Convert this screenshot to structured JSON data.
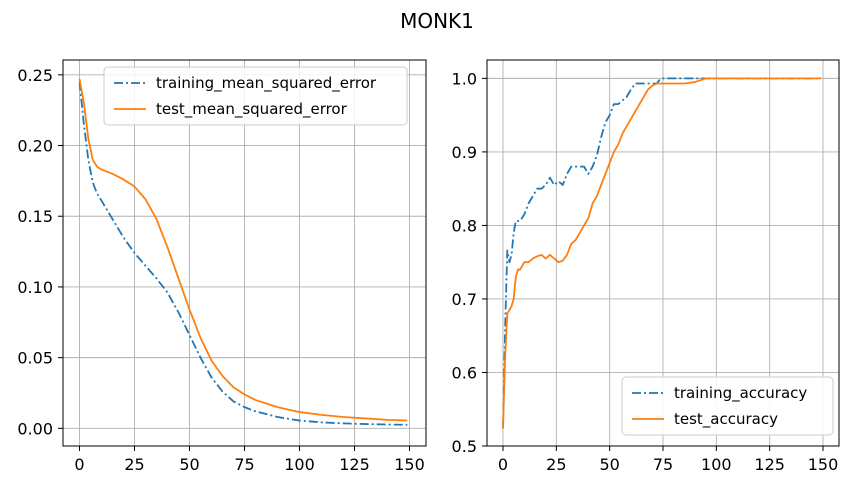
{
  "figure": {
    "title": "MONK1"
  },
  "colors": {
    "training": "#1f77b4",
    "test": "#ff7f0e",
    "grid": "#b0b0b0"
  },
  "chart_data": [
    {
      "type": "line",
      "title": "",
      "xlabel": "",
      "ylabel": "",
      "xlim": [
        -7.5,
        157.5
      ],
      "ylim": [
        -0.0125,
        0.2605
      ],
      "xticks": [
        0,
        25,
        50,
        75,
        100,
        125,
        150
      ],
      "xtick_labels": [
        "0",
        "25",
        "50",
        "75",
        "100",
        "125",
        "150"
      ],
      "yticks": [
        0.0,
        0.05,
        0.1,
        0.15,
        0.2,
        0.25
      ],
      "ytick_labels": [
        "0.00",
        "0.05",
        "0.10",
        "0.15",
        "0.20",
        "0.25"
      ],
      "grid": true,
      "legend_position": "upper right",
      "series": [
        {
          "name": "training_mean_squared_error",
          "style": "dashdot",
          "color": "#1f77b4",
          "x": [
            0,
            2,
            4,
            6,
            8,
            10,
            15,
            20,
            25,
            30,
            35,
            40,
            45,
            50,
            55,
            60,
            65,
            70,
            75,
            80,
            90,
            100,
            110,
            120,
            130,
            140,
            149
          ],
          "y": [
            0.245,
            0.215,
            0.19,
            0.174,
            0.166,
            0.161,
            0.148,
            0.135,
            0.124,
            0.115,
            0.106,
            0.096,
            0.082,
            0.066,
            0.05,
            0.036,
            0.026,
            0.019,
            0.015,
            0.012,
            0.008,
            0.0055,
            0.0042,
            0.0035,
            0.003,
            0.0027,
            0.0025
          ]
        },
        {
          "name": "test_mean_squared_error",
          "style": "solid",
          "color": "#ff7f0e",
          "x": [
            0,
            2,
            4,
            6,
            8,
            10,
            15,
            20,
            25,
            30,
            35,
            40,
            45,
            50,
            55,
            60,
            65,
            70,
            75,
            80,
            90,
            100,
            110,
            120,
            130,
            140,
            149
          ],
          "y": [
            0.247,
            0.23,
            0.205,
            0.19,
            0.185,
            0.183,
            0.18,
            0.176,
            0.171,
            0.162,
            0.148,
            0.128,
            0.106,
            0.084,
            0.064,
            0.048,
            0.037,
            0.029,
            0.024,
            0.02,
            0.015,
            0.0115,
            0.0095,
            0.008,
            0.007,
            0.006,
            0.0055
          ]
        }
      ]
    },
    {
      "type": "line",
      "title": "",
      "xlabel": "",
      "ylabel": "",
      "xlim": [
        -7.5,
        157.5
      ],
      "ylim": [
        0.5,
        1.025
      ],
      "xticks": [
        0,
        25,
        50,
        75,
        100,
        125,
        150
      ],
      "xtick_labels": [
        "0",
        "25",
        "50",
        "75",
        "100",
        "125",
        "150"
      ],
      "yticks": [
        0.5,
        0.6,
        0.7,
        0.8,
        0.9,
        1.0
      ],
      "ytick_labels": [
        "0.5",
        "0.6",
        "0.7",
        "0.8",
        "0.9",
        "1.0"
      ],
      "grid": true,
      "legend_position": "lower right",
      "series": [
        {
          "name": "training_accuracy",
          "style": "dashdot",
          "color": "#1f77b4",
          "x": [
            0,
            1,
            2,
            3,
            4,
            5,
            6,
            7,
            8,
            10,
            12,
            14,
            16,
            18,
            20,
            22,
            24,
            26,
            28,
            30,
            32,
            34,
            36,
            38,
            40,
            42,
            44,
            46,
            48,
            50,
            52,
            54,
            56,
            58,
            60,
            62,
            64,
            66,
            68,
            70,
            72,
            74,
            80,
            90,
            100,
            110,
            120,
            130,
            140,
            149
          ],
          "y": [
            0.524,
            0.66,
            0.766,
            0.75,
            0.76,
            0.79,
            0.806,
            0.806,
            0.806,
            0.815,
            0.83,
            0.84,
            0.85,
            0.85,
            0.855,
            0.865,
            0.855,
            0.86,
            0.855,
            0.87,
            0.88,
            0.88,
            0.88,
            0.88,
            0.87,
            0.88,
            0.895,
            0.92,
            0.94,
            0.95,
            0.965,
            0.965,
            0.97,
            0.975,
            0.985,
            0.993,
            0.993,
            0.993,
            0.993,
            0.993,
            0.993,
            1.0,
            1.0,
            1.0,
            1.0,
            1.0,
            1.0,
            1.0,
            1.0,
            1.0
          ]
        },
        {
          "name": "test_accuracy",
          "style": "solid",
          "color": "#ff7f0e",
          "x": [
            0,
            1,
            2,
            3,
            4,
            5,
            6,
            7,
            8,
            10,
            12,
            14,
            16,
            18,
            20,
            22,
            24,
            26,
            28,
            30,
            32,
            34,
            36,
            38,
            40,
            42,
            44,
            46,
            48,
            50,
            52,
            54,
            56,
            58,
            60,
            62,
            64,
            66,
            68,
            70,
            72,
            74,
            76,
            80,
            85,
            90,
            95,
            100,
            110,
            120,
            130,
            140,
            149
          ],
          "y": [
            0.524,
            0.62,
            0.68,
            0.685,
            0.69,
            0.7,
            0.73,
            0.74,
            0.74,
            0.75,
            0.75,
            0.755,
            0.758,
            0.76,
            0.755,
            0.76,
            0.755,
            0.75,
            0.752,
            0.76,
            0.775,
            0.78,
            0.79,
            0.8,
            0.81,
            0.83,
            0.84,
            0.855,
            0.87,
            0.885,
            0.9,
            0.91,
            0.925,
            0.935,
            0.945,
            0.955,
            0.965,
            0.975,
            0.985,
            0.99,
            0.993,
            0.993,
            0.993,
            0.993,
            0.993,
            0.995,
            1.0,
            1.0,
            1.0,
            1.0,
            1.0,
            1.0,
            1.0
          ]
        }
      ]
    }
  ]
}
